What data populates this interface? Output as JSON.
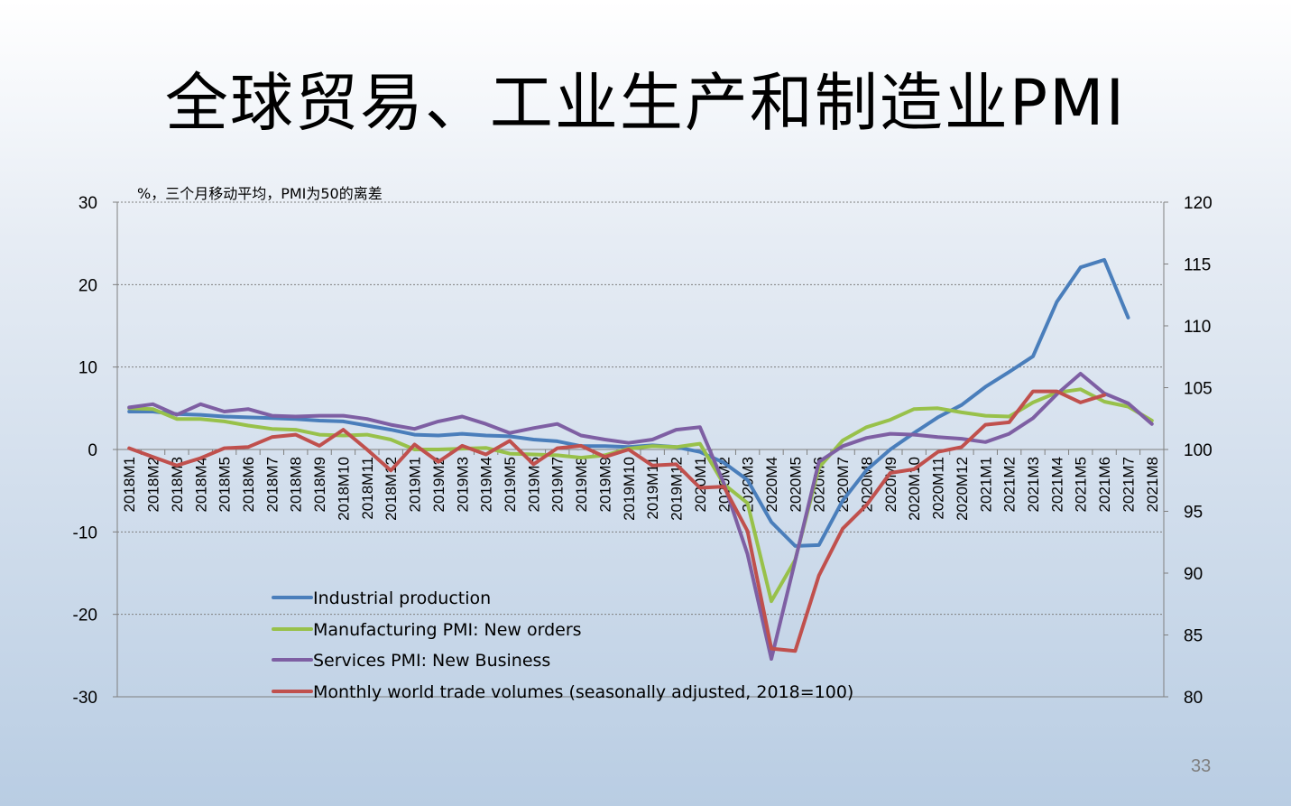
{
  "slide": {
    "title": "全球贸易、工业生产和制造业PMI",
    "page_number": "33"
  },
  "chart_data": {
    "type": "line",
    "unit_note": "%，三个月移动平均，PMI为50的离差",
    "categories": [
      "2018M1",
      "2018M2",
      "2018M3",
      "2018M4",
      "2018M5",
      "2018M6",
      "2018M7",
      "2018M8",
      "2018M9",
      "2018M10",
      "2018M11",
      "2018M12",
      "2019M1",
      "2019M2",
      "2019M3",
      "2019M4",
      "2019M5",
      "2019M6",
      "2019M7",
      "2019M8",
      "2019M9",
      "2019M10",
      "2019M11",
      "2019M12",
      "2020M1",
      "2020M2",
      "2020M3",
      "2020M4",
      "2020M5",
      "2020M6",
      "2020M7",
      "2020M8",
      "2020M9",
      "2020M10",
      "2020M11",
      "2020M12",
      "2021M1",
      "2021M2",
      "2021M3",
      "2021M4",
      "2021M5",
      "2021M6",
      "2021M7",
      "2021M8"
    ],
    "left_axis": {
      "min": -30,
      "max": 30,
      "ticks": [
        30,
        20,
        10,
        0,
        -10,
        -20,
        -30
      ]
    },
    "right_axis": {
      "min": 80,
      "max": 120,
      "ticks": [
        120,
        115,
        110,
        105,
        100,
        95,
        90,
        85,
        80
      ]
    },
    "series": [
      {
        "name": "Industrial production",
        "axis": "left",
        "color": "#4a7ebb",
        "values": [
          4.6,
          4.6,
          4.3,
          4.2,
          4.0,
          3.9,
          3.8,
          3.7,
          3.5,
          3.4,
          2.9,
          2.4,
          1.8,
          1.7,
          1.9,
          1.7,
          1.6,
          1.2,
          1.0,
          0.4,
          0.4,
          0.3,
          0.5,
          0.3,
          -0.3,
          -1.6,
          -3.7,
          -8.8,
          -11.7,
          -11.6,
          -6.2,
          -2.5,
          0.0,
          2.0,
          3.9,
          5.4,
          7.6,
          9.4,
          11.3,
          17.9,
          22.1,
          23.0,
          16.0,
          null
        ]
      },
      {
        "name": "Manufacturing PMI: New orders",
        "axis": "left",
        "color": "#98c14a",
        "values": [
          5.0,
          4.9,
          3.7,
          3.7,
          3.4,
          2.9,
          2.5,
          2.4,
          1.8,
          1.7,
          1.8,
          1.2,
          0.0,
          0.0,
          0.1,
          0.2,
          -0.5,
          -0.6,
          -0.7,
          -1.0,
          -0.7,
          0.1,
          0.4,
          0.3,
          0.7,
          -4.2,
          -6.5,
          -18.4,
          -13.4,
          -2.2,
          1.1,
          2.7,
          3.6,
          4.9,
          5.0,
          4.5,
          4.1,
          4.0,
          5.7,
          6.9,
          7.3,
          5.8,
          5.2,
          3.5
        ]
      },
      {
        "name": "Services PMI: New Business",
        "axis": "left",
        "color": "#7e5fa3",
        "values": [
          5.1,
          5.5,
          4.2,
          5.5,
          4.6,
          4.9,
          4.1,
          4.0,
          4.1,
          4.1,
          3.7,
          3.0,
          2.5,
          3.4,
          4.0,
          3.1,
          2.0,
          2.6,
          3.1,
          1.7,
          1.2,
          0.8,
          1.2,
          2.4,
          2.7,
          -4.1,
          -12.7,
          -25.4,
          -13.5,
          -1.5,
          0.4,
          1.4,
          1.9,
          1.8,
          1.5,
          1.3,
          0.9,
          1.9,
          3.8,
          6.7,
          9.2,
          6.8,
          5.6,
          3.1
        ]
      },
      {
        "name": "Monthly world trade volumes (seasonally adjusted, 2018=100)",
        "axis": "right",
        "color": "#c0504d",
        "values": [
          100.1,
          99.4,
          98.7,
          99.3,
          100.1,
          100.2,
          101.0,
          101.2,
          100.3,
          101.6,
          100.0,
          98.3,
          100.4,
          99.0,
          100.3,
          99.6,
          100.7,
          98.8,
          100.1,
          100.3,
          99.4,
          100.0,
          98.7,
          98.8,
          96.9,
          97.0,
          93.4,
          83.9,
          83.7,
          89.8,
          93.6,
          95.5,
          98.1,
          98.4,
          99.8,
          100.2,
          102.0,
          102.2,
          104.7,
          104.7,
          103.8,
          104.4,
          null,
          null
        ]
      }
    ],
    "grid": "horizontal dotted",
    "legend": "lower-left inside"
  }
}
